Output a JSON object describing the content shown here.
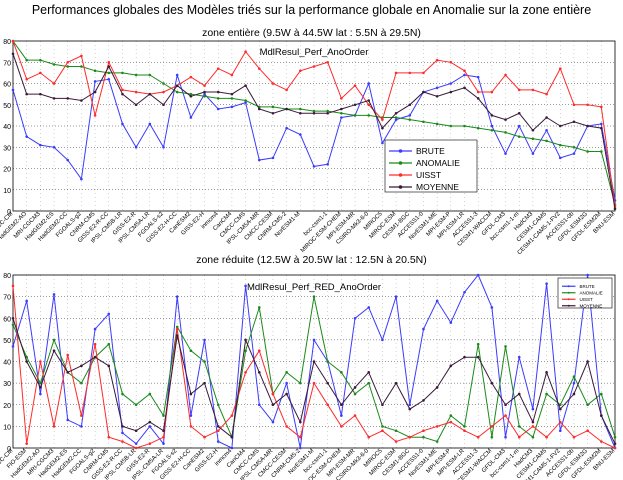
{
  "page_title": "Performances globales des Modèles triés sur la performance globale en Anomalie sur la zone entière",
  "chart_data": [
    {
      "type": "line",
      "section_label": "zone entière  (9.5W à 44.5W lat : 5.5N à 29.5N)",
      "title": "MdlResul_Perf_AnoOrder",
      "ylim": [
        0,
        80
      ],
      "yticks": [
        "0",
        "10",
        "20",
        "30",
        "40",
        "50",
        "60",
        "70",
        "80"
      ],
      "grid": true,
      "legend_position": "center-right",
      "categories": [
        "CMCC-CM",
        "FIO-ESM",
        "HadGEM2-AO",
        "MRI-CGCM3",
        "HadGEM2-ES",
        "HadGEM2-CC",
        "FGOALS-g2",
        "CNRM-CM5",
        "GISS-E2-R-CC",
        "IPSL-CM5B-LR",
        "GISS-E2-R",
        "IPSL-CM5A-LR",
        "FGOALS-s2",
        "GISS-E2-H-CC",
        "CanESM2",
        "GISS-E2-H",
        "inmcm4",
        "CanCM4",
        "CMCC-CMS",
        "IPSL-CM5A-MR",
        "CMCC-CESM",
        "CNRM-CM5-2",
        "NorESM1-M",
        "bcc-csm1-1",
        "MIROC-ESM-CHEM",
        "MPI-ESM-MR",
        "CSIRO-Mk3-6-0",
        "MIROC5",
        "MIROC-ESM",
        "CESM1-BGC",
        "ACCESS1-0",
        "NorESM1-ME",
        "MPI-ESM-P",
        "MPI-ESM-LR",
        "ACCESS1-3",
        "CESM1-WACCM",
        "GFDL-CM3",
        "bcc-csm1-1-m",
        "HadCM3",
        "CESM1-CAM5",
        "CESM1-CAM5-1-FV2",
        "ACCESS1-0b",
        "GFDL-ESM2G",
        "GFDL-ESM2M",
        "BNU-ESM"
      ],
      "category_labels_shown": [
        "CMCC-CM",
        "HadGEM2-AO",
        "MRI-CGCM3",
        "HadGEM2-ES",
        "HadGEM2-CC",
        "FGOALS-g2",
        "CNRM-CM5",
        "GISS-E2-R-CC",
        "IPSL-CM5B-LR",
        "GISS-E2-R",
        "IPSL-CM5A-LR",
        "FGOALS-s2",
        "GISS-E2-H-CC",
        "CanESM2",
        "GISS-E2-H",
        "inmcm4",
        "CanCM4",
        "CMCC-CMS",
        "IPSL-CM5A-MR",
        "CMCC-CESM",
        "CNRM-CM5-2",
        "NorESM1-M",
        "bcc-csm1-1",
        "MIROC-ESM-CHEM",
        "MPI-ESM-MR",
        "CSIRO-Mk3-6-0",
        "MIROC5",
        "MIROC-ESM",
        "CESM1-BGC",
        "ACCESS1-0",
        "NorESM1-ME",
        "MPI-ESM-P",
        "MPI-ESM-LR",
        "ACCESS1-3",
        "CESM1-WACCM",
        "GFDL-CM3",
        "bcc-csm1-1-m",
        "HadCM3",
        "CESM1-CAM5",
        "CESM1-CAM5-1-FV2",
        "ACCESS1-0b",
        "GFDL-ESM2G",
        "GFDL-ESM2M",
        "BNU-ESM"
      ],
      "series": [
        {
          "name": "BRUTE",
          "color": "#3b3bff",
          "values": [
            57,
            35,
            31,
            30,
            24,
            15,
            61,
            62,
            41,
            30,
            41,
            30,
            64,
            44,
            55,
            48,
            49,
            51,
            24,
            25,
            39,
            36,
            21,
            22,
            44,
            45,
            60,
            32,
            43,
            45,
            56,
            58,
            60,
            64,
            63,
            40,
            27,
            40,
            27,
            38,
            25,
            27,
            40,
            41,
            5
          ]
        },
        {
          "name": "ANOMALIE",
          "color": "#1a8a1a",
          "values": [
            80,
            71,
            71,
            69,
            68,
            68,
            66,
            65,
            65,
            64,
            64,
            60,
            56,
            55,
            54,
            53,
            53,
            52,
            49,
            49,
            48,
            48,
            47,
            47,
            46,
            45,
            45,
            44,
            44,
            43,
            42,
            41,
            40,
            40,
            39,
            38,
            37,
            35,
            34,
            33,
            31,
            30,
            28,
            28,
            3
          ]
        },
        {
          "name": "UISST",
          "color": "#ff2a2a",
          "values": [
            85,
            62,
            65,
            60,
            70,
            73,
            45,
            70,
            57,
            56,
            55,
            56,
            59,
            63,
            59,
            67,
            64,
            75,
            67,
            60,
            57,
            66,
            68,
            70,
            53,
            59,
            50,
            43,
            65,
            65,
            65,
            71,
            70,
            66,
            56,
            56,
            64,
            57,
            57,
            55,
            67,
            50,
            50,
            49,
            2
          ]
        },
        {
          "name": "MOYENNE",
          "color": "#3a1a3a",
          "values": [
            74,
            55,
            55,
            53,
            53,
            52,
            56,
            68,
            55,
            50,
            55,
            50,
            59,
            54,
            56,
            56,
            55,
            59,
            48,
            46,
            48,
            46,
            46,
            46,
            48,
            50,
            52,
            39,
            46,
            50,
            56,
            54,
            56,
            58,
            53,
            45,
            43,
            46,
            38,
            44,
            40,
            42,
            40,
            39,
            1
          ]
        }
      ]
    },
    {
      "type": "line",
      "section_label": "zone réduite (12.5W à 20.5W lat : 12.5N à 20.5N)",
      "title": "MdlResul_Perf_RED_AnoOrder",
      "ylim": [
        0,
        80
      ],
      "yticks": [
        "0",
        "10",
        "20",
        "30",
        "40",
        "50",
        "60",
        "70",
        "80"
      ],
      "grid": true,
      "legend_position": "top-right",
      "categories": [
        "CMCC-CM",
        "FIO-ESM",
        "HadGEM2-AO",
        "MRI-CGCM3",
        "HadGEM2-ES",
        "HadGEM2-CC",
        "FGOALS-g2",
        "CNRM-CM5",
        "GISS-E2-R-CC",
        "IPSL-CM5B-LR",
        "GISS-E2-R",
        "IPSL-CM5A-LR",
        "FGOALS-s2",
        "GISS-E2-H-CC",
        "CanESM2",
        "GISS-E2-H",
        "inmcm4",
        "CanCM4",
        "CMCC-CMS",
        "IPSL-CM5A-MR",
        "CMCC-CESM",
        "CNRM-CM5-2",
        "NorESM1-M",
        "bcc-csm1-1",
        "MIROC-ESM-CHEM",
        "MPI-ESM-MR",
        "CSIRO-Mk3-6-0",
        "MIROC5",
        "MIROC-ESM",
        "CESM1-BGC",
        "ACCESS1-0",
        "NorESM1-ME",
        "MPI-ESM-P",
        "MPI-ESM-LR",
        "ACCESS1-3",
        "CESM1-WACCM",
        "GFDL-CM3",
        "bcc-csm1-1-m",
        "HadCM3",
        "CESM1-CAM5",
        "CESM1-CAM5-1-FV2",
        "ACCESS1-0b",
        "GFDL-ESM2G",
        "GFDL-ESM2M",
        "BNU-ESM"
      ],
      "category_labels_shown": [
        "CMCC-CM",
        "FIO-ESM",
        "HadGEM2-AO",
        "MRI-CGCM3",
        "HadGEM2-ES",
        "HadGEM2-CC",
        "FGOALS-g2",
        "CNRM-CM5",
        "GISS-E2-R-CC",
        "IPSL-CM5B-LR",
        "GISS-E2-R",
        "IPSL-CM5A-LR",
        "FGOALS-s2",
        "GISS-E2-H-CC",
        "CanESM2",
        "GISS-E2-H",
        "inmcm4",
        "CanCM4",
        "CMCC-CMS",
        "IPSL-CM5A-MR",
        "CMCC-CESM",
        "CNRM-CM5-2",
        "NorESM1-M",
        "bcc-csm1-1",
        "MIROC-ESM-CHEM",
        "MPI-ESM-MR",
        "CSIRO-Mk3-6-0",
        "MIROC5",
        "MIROC-ESM",
        "CESM1-BGC",
        "ACCESS1-0",
        "NorESM1-ME",
        "MPI-ESM-P",
        "MPI-ESM-LR",
        "ACCESS1-3",
        "CESM1-WACCM",
        "GFDL-CM3",
        "bcc-csm1-1-m",
        "HadCM3",
        "CESM1-CAM5",
        "CESM1-CAM5-1-FV2",
        "ACCESS1-0b",
        "GFDL-ESM2G",
        "GFDL-ESM2M",
        "BNU-ESM"
      ],
      "series": [
        {
          "name": "BRUTE",
          "color": "#3b3bff",
          "values": [
            47,
            68,
            25,
            71,
            13,
            10,
            55,
            62,
            7,
            2,
            10,
            2,
            70,
            15,
            50,
            3,
            0,
            75,
            20,
            12,
            30,
            0,
            50,
            40,
            15,
            60,
            65,
            50,
            70,
            20,
            55,
            68,
            58,
            72,
            80,
            65,
            5,
            42,
            18,
            76,
            8,
            30,
            80,
            15,
            0
          ]
        },
        {
          "name": "ANOMALIE",
          "color": "#1a8a1a",
          "values": [
            57,
            42,
            30,
            50,
            35,
            30,
            42,
            48,
            25,
            20,
            25,
            15,
            56,
            45,
            40,
            20,
            5,
            45,
            65,
            25,
            35,
            30,
            70,
            40,
            35,
            25,
            30,
            10,
            8,
            5,
            5,
            3,
            15,
            10,
            48,
            5,
            47,
            10,
            5,
            25,
            20,
            33,
            20,
            25,
            5
          ]
        },
        {
          "name": "UISST",
          "color": "#ff2a2a",
          "values": [
            75,
            2,
            40,
            10,
            43,
            15,
            48,
            5,
            3,
            0,
            2,
            5,
            55,
            10,
            5,
            8,
            15,
            35,
            45,
            25,
            10,
            5,
            30,
            20,
            10,
            15,
            5,
            8,
            3,
            5,
            8,
            10,
            12,
            8,
            5,
            10,
            15,
            5,
            10,
            5,
            12,
            5,
            8,
            3,
            0
          ]
        },
        {
          "name": "MOYENNE",
          "color": "#3a1a3a",
          "values": [
            60,
            40,
            28,
            45,
            35,
            38,
            42,
            38,
            10,
            8,
            12,
            8,
            52,
            25,
            30,
            10,
            5,
            50,
            35,
            20,
            25,
            12,
            40,
            30,
            20,
            28,
            35,
            20,
            30,
            18,
            22,
            28,
            38,
            42,
            42,
            30,
            20,
            25,
            12,
            35,
            18,
            25,
            40,
            15,
            2
          ]
        }
      ]
    }
  ]
}
